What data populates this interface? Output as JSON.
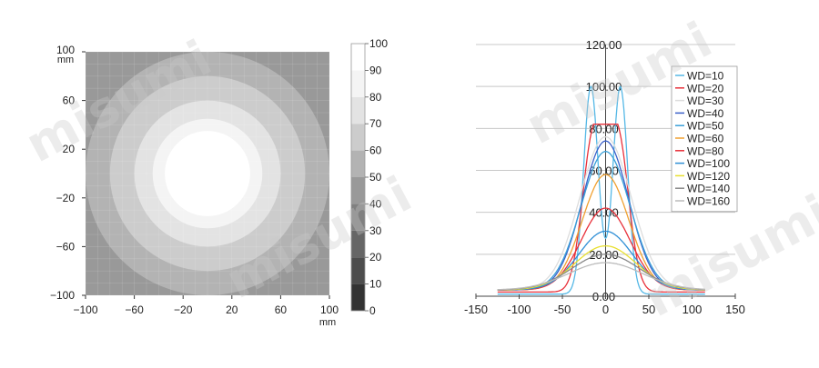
{
  "watermark": "misumi",
  "chart_data": [
    {
      "type": "heatmap",
      "x_ticks": [
        -100,
        -60,
        -20,
        20,
        60,
        100
      ],
      "y_ticks": [
        100,
        60,
        20,
        -20,
        -60,
        -100
      ],
      "x_unit": "mm",
      "y_unit": "mm",
      "xlim": [
        -100,
        100
      ],
      "ylim": [
        -100,
        100
      ],
      "grid": true,
      "colorbar": {
        "ticks": [
          100,
          90,
          80,
          70,
          60,
          50,
          40,
          30,
          20,
          10,
          0
        ],
        "range": [
          0,
          100
        ],
        "colors": [
          "#1a1a1a",
          "#333333",
          "#4d4d4d",
          "#666666",
          "#808080",
          "#999999",
          "#b3b3b3",
          "#cccccc",
          "#e3e3e3",
          "#f4f4f4",
          "#ffffff"
        ]
      },
      "rings": [
        {
          "radius": 100,
          "level": 60
        },
        {
          "radius": 80,
          "level": 70
        },
        {
          "radius": 60,
          "level": 80
        },
        {
          "radius": 45,
          "level": 90
        },
        {
          "radius": 35,
          "level": 100
        }
      ],
      "background_level": 50
    },
    {
      "type": "line",
      "xlim": [
        -150,
        150
      ],
      "ylim": [
        0,
        120
      ],
      "x_ticks": [
        -150,
        -100,
        -50,
        0,
        50,
        100,
        150
      ],
      "y_ticks": [
        0,
        20,
        40,
        60,
        80,
        100,
        120
      ],
      "y_tick_labels": [
        "0.00",
        "20.00",
        "40.00",
        "60.00",
        "80.00",
        "100.00",
        "120.00"
      ],
      "grid": true,
      "legend_position": "top-right",
      "series": [
        {
          "name": "WD=10",
          "color": "#55b8e6",
          "peak": 100,
          "valley": 70,
          "offset": 17,
          "spread": 12,
          "base": 1
        },
        {
          "name": "WD=20",
          "color": "#e8303a",
          "peak": 82,
          "valley": 72,
          "offset": 14,
          "spread": 18,
          "base": 2
        },
        {
          "name": "WD=30",
          "color": "#dddddd",
          "peak": 76,
          "spread": 42,
          "base": 3
        },
        {
          "name": "WD=40",
          "color": "#3a5fc8",
          "peak": 74,
          "spread": 38,
          "base": 3
        },
        {
          "name": "WD=50",
          "color": "#3aa0d8",
          "peak": 69,
          "spread": 40,
          "base": 3
        },
        {
          "name": "WD=60",
          "color": "#f0a030",
          "peak": 58,
          "spread": 38,
          "base": 3
        },
        {
          "name": "WD=80",
          "color": "#e8303a",
          "peak": 42,
          "spread": 40,
          "base": 3
        },
        {
          "name": "WD=100",
          "color": "#2f8fd6",
          "peak": 31,
          "spread": 44,
          "base": 3
        },
        {
          "name": "WD=120",
          "color": "#e8e030",
          "peak": 24,
          "spread": 50,
          "base": 3
        },
        {
          "name": "WD=140",
          "color": "#888888",
          "peak": 20,
          "spread": 55,
          "base": 3
        },
        {
          "name": "WD=160",
          "color": "#bbbbbb",
          "peak": 16,
          "spread": 60,
          "base": 3
        }
      ],
      "x_range_of_lines": [
        -125,
        115
      ]
    }
  ]
}
